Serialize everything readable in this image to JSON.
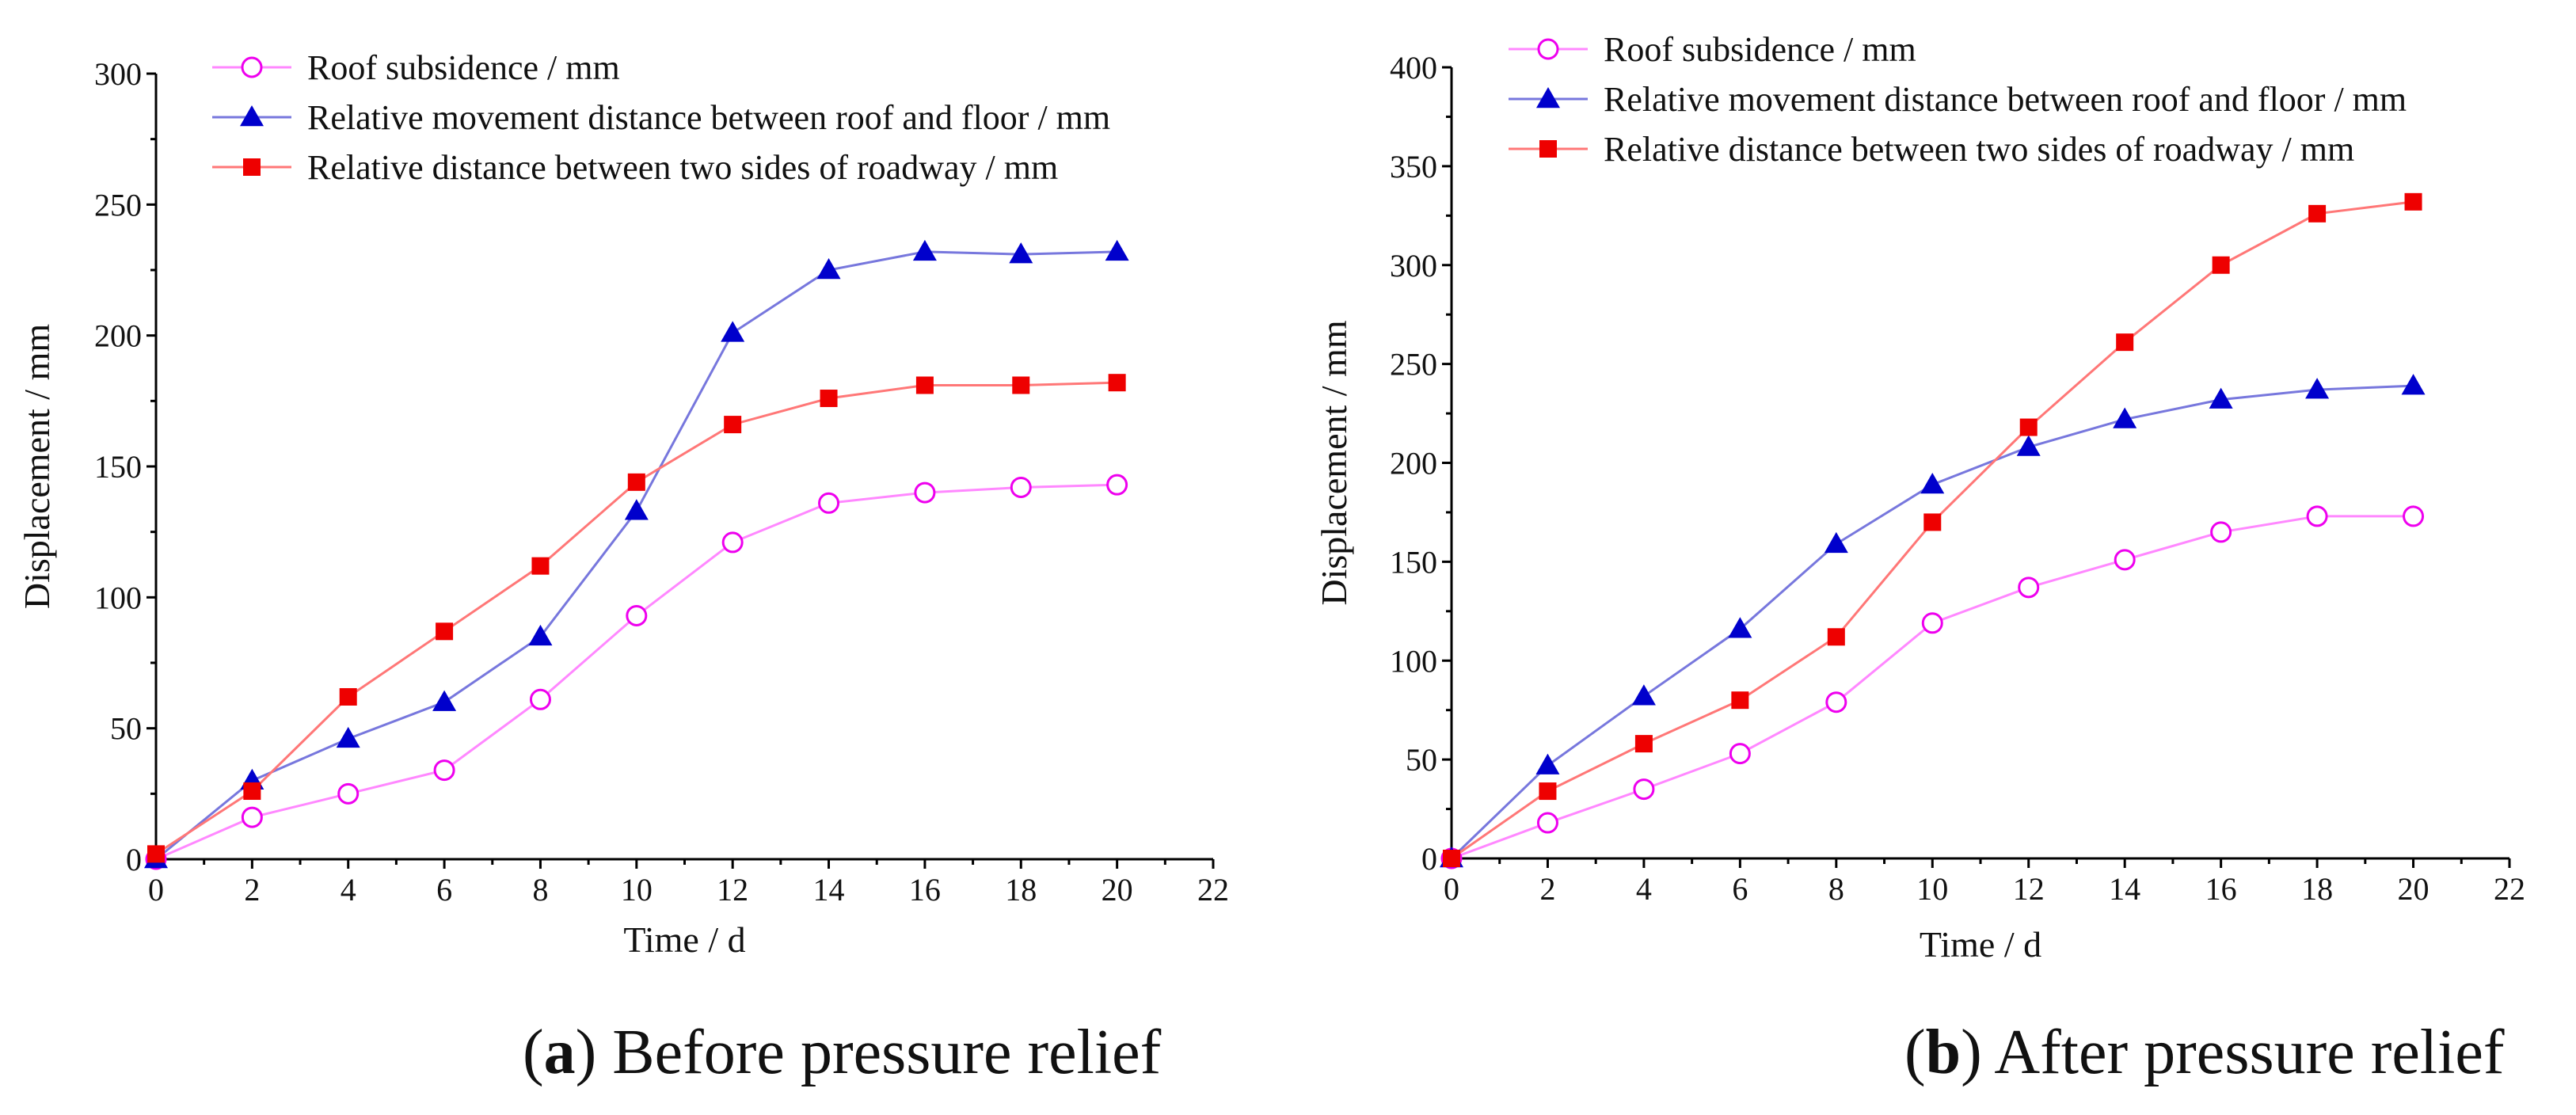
{
  "colors": {
    "roof": "#ee00ee",
    "roof_floor": "#0000cc",
    "sides": "#ee0000",
    "roof_line": "#ff88ff",
    "roof_floor_line": "#7777dd",
    "sides_line": "#ff7777"
  },
  "chart_data": [
    {
      "type": "line",
      "caption_letter": "a",
      "caption_text": "Before pressure relief",
      "xlabel": "Time / d",
      "ylabel": "Displacement / mm",
      "xlim": [
        0,
        22
      ],
      "ylim": [
        0,
        300
      ],
      "x_ticks": [
        "0",
        "2",
        "4",
        "6",
        "8",
        "10",
        "12",
        "14",
        "16",
        "18",
        "20",
        "22"
      ],
      "y_ticks": [
        "0",
        "50",
        "100",
        "150",
        "200",
        "250",
        "300"
      ],
      "x": [
        0,
        2,
        4,
        6,
        8,
        10,
        12,
        14,
        16,
        18,
        20
      ],
      "series": [
        {
          "name": "Roof subsidence / mm",
          "marker": "circle",
          "values": [
            0,
            16,
            25,
            34,
            61,
            93,
            121,
            136,
            140,
            142,
            143
          ]
        },
        {
          "name": "Relative movement distance between roof and floor / mm",
          "marker": "triangle",
          "values": [
            0,
            30,
            46,
            60,
            85,
            133,
            201,
            225,
            232,
            231,
            232
          ]
        },
        {
          "name": "Relative distance between two sides of roadway / mm",
          "marker": "square",
          "values": [
            2,
            26,
            62,
            87,
            112,
            144,
            166,
            176,
            181,
            181,
            182
          ]
        }
      ]
    },
    {
      "type": "line",
      "caption_letter": "b",
      "caption_text": "After pressure relief",
      "xlabel": "Time / d",
      "ylabel": "Displacement / mm",
      "xlim": [
        0,
        22
      ],
      "ylim": [
        0,
        400
      ],
      "x_ticks": [
        "0",
        "2",
        "4",
        "6",
        "8",
        "10",
        "12",
        "14",
        "16",
        "18",
        "20",
        "22"
      ],
      "y_ticks": [
        "0",
        "50",
        "100",
        "150",
        "200",
        "250",
        "300",
        "350",
        "400"
      ],
      "x": [
        0,
        2,
        4,
        6,
        8,
        10,
        12,
        14,
        16,
        18,
        20
      ],
      "series": [
        {
          "name": " Roof subsidence / mm",
          "marker": "circle",
          "values": [
            0,
            18,
            35,
            53,
            79,
            119,
            137,
            151,
            165,
            173,
            173
          ]
        },
        {
          "name": "Relative movement distance between roof and floor / mm",
          "marker": "triangle",
          "values": [
            0,
            47,
            82,
            116,
            159,
            189,
            208,
            222,
            232,
            237,
            239
          ]
        },
        {
          "name": "Relative distance between two sides of roadway / mm",
          "marker": "square",
          "values": [
            0,
            34,
            58,
            80,
            112,
            170,
            218,
            261,
            300,
            326,
            332
          ]
        }
      ]
    }
  ]
}
